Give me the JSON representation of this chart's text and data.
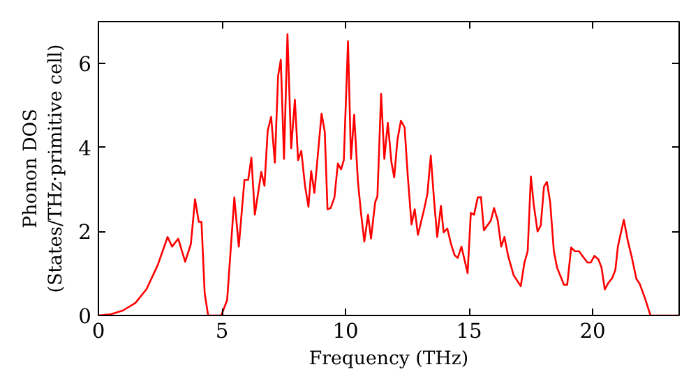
{
  "chart_data": {
    "type": "line",
    "xlabel": "Frequency (THz)",
    "ylabel": "Phonon DOS\n(States/THz·primitive cell)",
    "xlim": [
      0,
      23.5
    ],
    "ylim": [
      0,
      7
    ],
    "xticks": [
      0,
      5,
      10,
      15,
      20
    ],
    "yticks": [
      0,
      2,
      4,
      6
    ],
    "grid": false,
    "series": [
      {
        "color": "#ff0000",
        "x": [
          0,
          0.5,
          1.0,
          1.5,
          1.95,
          2.4,
          2.8,
          2.98,
          3.23,
          3.51,
          3.74,
          3.91,
          4.06,
          4.17,
          4.3,
          4.44,
          4.97,
          5.21,
          5.5,
          5.68,
          5.91,
          6.06,
          6.19,
          6.33,
          6.59,
          6.72,
          6.85,
          6.99,
          7.14,
          7.27,
          7.38,
          7.51,
          7.65,
          7.8,
          7.95,
          8.08,
          8.21,
          8.36,
          8.5,
          8.61,
          8.74,
          9.03,
          9.16,
          9.27,
          9.4,
          9.55,
          9.69,
          9.82,
          9.93,
          10.1,
          10.22,
          10.35,
          10.5,
          10.63,
          10.76,
          10.91,
          11.03,
          11.2,
          11.29,
          11.44,
          11.57,
          11.71,
          11.86,
          11.97,
          12.1,
          12.24,
          12.39,
          12.52,
          12.67,
          12.8,
          12.93,
          13.18,
          13.31,
          13.45,
          13.58,
          13.71,
          13.86,
          13.97,
          14.12,
          14.26,
          14.41,
          14.54,
          14.69,
          14.94,
          15.07,
          15.2,
          15.35,
          15.48,
          15.6,
          15.88,
          16.01,
          16.16,
          16.3,
          16.43,
          16.58,
          16.8,
          17.09,
          17.24,
          17.37,
          17.5,
          17.62,
          17.77,
          17.9,
          18.03,
          18.15,
          18.28,
          18.43,
          18.56,
          18.84,
          18.97,
          19.13,
          19.28,
          19.45,
          19.56,
          19.79,
          19.92,
          20.07,
          20.23,
          20.36,
          20.49,
          20.64,
          20.79,
          20.92,
          21.02,
          21.26,
          21.43,
          21.59,
          21.77,
          21.9,
          22.11,
          22.34,
          23.5
        ],
        "values": [
          0,
          0.03,
          0.12,
          0.3,
          0.63,
          1.2,
          1.87,
          1.64,
          1.83,
          1.28,
          1.7,
          2.77,
          2.23,
          2.23,
          0.53,
          0,
          0,
          0.37,
          2.81,
          1.64,
          3.23,
          3.23,
          3.76,
          2.4,
          3.42,
          3.09,
          4.4,
          4.73,
          3.64,
          5.7,
          6.09,
          3.73,
          6.7,
          3.98,
          5.14,
          3.7,
          3.92,
          3.09,
          2.59,
          3.44,
          2.92,
          4.81,
          4.37,
          2.53,
          2.56,
          2.81,
          3.62,
          3.48,
          3.7,
          6.53,
          3.73,
          4.78,
          3.2,
          2.42,
          1.76,
          2.4,
          1.83,
          2.7,
          2.84,
          5.28,
          3.73,
          4.59,
          3.64,
          3.29,
          4.18,
          4.64,
          4.48,
          3.31,
          2.17,
          2.53,
          1.92,
          2.53,
          2.89,
          3.81,
          2.76,
          1.87,
          2.61,
          1.98,
          2.07,
          1.72,
          1.44,
          1.37,
          1.64,
          1.01,
          2.44,
          2.4,
          2.81,
          2.82,
          2.03,
          2.26,
          2.56,
          2.26,
          1.64,
          1.87,
          1.42,
          0.96,
          0.7,
          1.26,
          1.53,
          3.31,
          2.62,
          2.0,
          2.14,
          3.07,
          3.18,
          2.7,
          1.53,
          1.14,
          0.73,
          0.73,
          1.62,
          1.53,
          1.53,
          1.44,
          1.26,
          1.26,
          1.42,
          1.34,
          1.14,
          0.62,
          0.78,
          0.89,
          1.09,
          1.64,
          2.28,
          1.76,
          1.37,
          0.87,
          0.76,
          0.42,
          0,
          0
        ]
      }
    ]
  }
}
